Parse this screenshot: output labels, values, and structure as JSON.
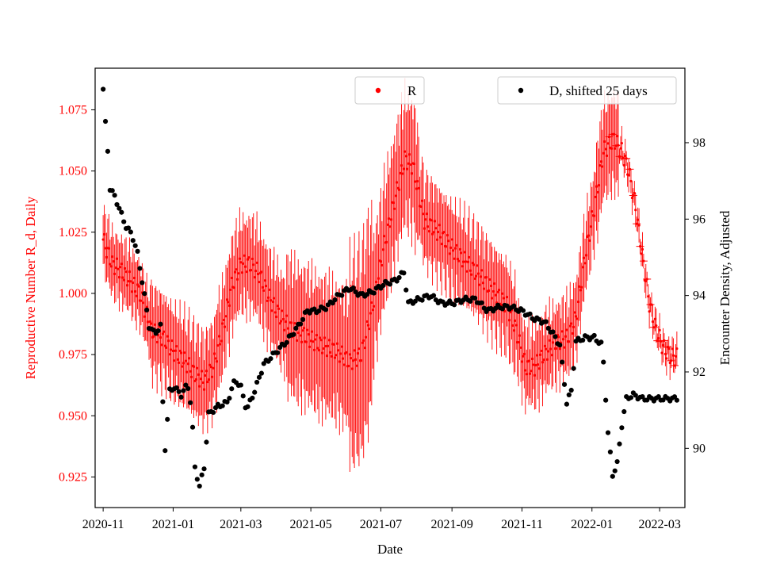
{
  "chart_data": {
    "type": "scatter",
    "title": "",
    "xlabel": "Date",
    "ylabel_left": "Reproductive Number R_d, Daily",
    "ylabel_right": "Encounter Density, Adjusted",
    "x_range_days": [
      -7,
      507
    ],
    "x_ticks": [
      {
        "day": 0,
        "label": "2020-11"
      },
      {
        "day": 61,
        "label": "2021-01"
      },
      {
        "day": 120,
        "label": "2021-03"
      },
      {
        "day": 181,
        "label": "2021-05"
      },
      {
        "day": 242,
        "label": "2021-07"
      },
      {
        "day": 304,
        "label": "2021-09"
      },
      {
        "day": 365,
        "label": "2021-11"
      },
      {
        "day": 426,
        "label": "2022-01"
      },
      {
        "day": 485,
        "label": "2022-03"
      }
    ],
    "y_left_range": [
      0.9125,
      1.092
    ],
    "y_left_ticks": [
      "0.925",
      "0.950",
      "0.975",
      "1.000",
      "1.025",
      "1.050",
      "1.075"
    ],
    "y_right_range": [
      88.45,
      99.95
    ],
    "y_right_ticks": [
      "90",
      "92",
      "94",
      "96",
      "98"
    ],
    "colors": {
      "R": "#ff0000",
      "D": "#000000",
      "axis": "#000000",
      "left_axis_text": "#ff0000"
    },
    "series": [
      {
        "name": "R",
        "axis": "left",
        "marker": "point-with-errorbar",
        "keypoints": [
          [
            0,
            1.022
          ],
          [
            3,
            1.018
          ],
          [
            8,
            1.012
          ],
          [
            14,
            1.01
          ],
          [
            22,
            1.006
          ],
          [
            32,
            1.0
          ],
          [
            42,
            0.985
          ],
          [
            52,
            0.982
          ],
          [
            62,
            0.976
          ],
          [
            72,
            0.972
          ],
          [
            80,
            0.967
          ],
          [
            88,
            0.964
          ],
          [
            96,
            0.97
          ],
          [
            104,
            0.985
          ],
          [
            112,
            1.003
          ],
          [
            120,
            1.012
          ],
          [
            128,
            1.012
          ],
          [
            136,
            1.008
          ],
          [
            145,
            0.998
          ],
          [
            155,
            0.99
          ],
          [
            165,
            0.985
          ],
          [
            175,
            0.983
          ],
          [
            185,
            0.98
          ],
          [
            195,
            0.978
          ],
          [
            205,
            0.976
          ],
          [
            215,
            0.972
          ],
          [
            225,
            0.975
          ],
          [
            235,
            0.995
          ],
          [
            245,
            1.02
          ],
          [
            255,
            1.04
          ],
          [
            263,
            1.055
          ],
          [
            270,
            1.052
          ],
          [
            280,
            1.03
          ],
          [
            292,
            1.025
          ],
          [
            305,
            1.018
          ],
          [
            318,
            1.012
          ],
          [
            330,
            1.006
          ],
          [
            342,
            1.0
          ],
          [
            352,
            0.995
          ],
          [
            360,
            0.985
          ],
          [
            368,
            0.97
          ],
          [
            376,
            0.97
          ],
          [
            384,
            0.975
          ],
          [
            395,
            0.98
          ],
          [
            405,
            0.982
          ],
          [
            412,
            0.99
          ],
          [
            420,
            1.015
          ],
          [
            428,
            1.035
          ],
          [
            436,
            1.058
          ],
          [
            445,
            1.063
          ],
          [
            452,
            1.058
          ],
          [
            458,
            1.05
          ],
          [
            464,
            1.035
          ],
          [
            470,
            1.015
          ],
          [
            476,
            0.996
          ],
          [
            482,
            0.985
          ],
          [
            488,
            0.978
          ],
          [
            495,
            0.974
          ],
          [
            500,
            0.974
          ]
        ]
      },
      {
        "name": "D, shifted 25 days",
        "axis": "right",
        "marker": "point",
        "keypoints": [
          [
            0,
            99.4
          ],
          [
            1,
            98.9
          ],
          [
            2,
            98.5
          ],
          [
            3,
            98.2
          ],
          [
            5,
            97.4
          ],
          [
            6,
            96.8
          ],
          [
            10,
            96.6
          ],
          [
            15,
            96.2
          ],
          [
            20,
            95.8
          ],
          [
            25,
            95.6
          ],
          [
            30,
            95.1
          ],
          [
            35,
            94.2
          ],
          [
            40,
            93.2
          ],
          [
            45,
            93.0
          ],
          [
            50,
            93.2
          ],
          [
            52,
            91.2
          ],
          [
            54,
            90.0
          ],
          [
            58,
            91.5
          ],
          [
            62,
            91.6
          ],
          [
            68,
            91.4
          ],
          [
            72,
            91.6
          ],
          [
            75,
            91.6
          ],
          [
            78,
            90.5
          ],
          [
            80,
            89.5
          ],
          [
            84,
            89.0
          ],
          [
            88,
            89.5
          ],
          [
            92,
            90.9
          ],
          [
            100,
            91.1
          ],
          [
            108,
            91.2
          ],
          [
            115,
            91.8
          ],
          [
            120,
            91.6
          ],
          [
            125,
            91.0
          ],
          [
            132,
            91.5
          ],
          [
            140,
            92.2
          ],
          [
            150,
            92.5
          ],
          [
            160,
            92.8
          ],
          [
            170,
            93.2
          ],
          [
            178,
            93.6
          ],
          [
            186,
            93.6
          ],
          [
            195,
            93.7
          ],
          [
            205,
            94.0
          ],
          [
            215,
            94.2
          ],
          [
            225,
            94.0
          ],
          [
            235,
            94.1
          ],
          [
            245,
            94.3
          ],
          [
            255,
            94.4
          ],
          [
            262,
            94.6
          ],
          [
            266,
            93.8
          ],
          [
            275,
            93.9
          ],
          [
            285,
            94.0
          ],
          [
            295,
            93.8
          ],
          [
            305,
            93.8
          ],
          [
            315,
            93.9
          ],
          [
            325,
            93.9
          ],
          [
            335,
            93.6
          ],
          [
            345,
            93.7
          ],
          [
            355,
            93.7
          ],
          [
            365,
            93.6
          ],
          [
            375,
            93.4
          ],
          [
            385,
            93.3
          ],
          [
            392,
            93.0
          ],
          [
            398,
            92.7
          ],
          [
            404,
            91.2
          ],
          [
            408,
            91.5
          ],
          [
            412,
            92.8
          ],
          [
            420,
            92.9
          ],
          [
            428,
            92.9
          ],
          [
            435,
            92.7
          ],
          [
            440,
            90.4
          ],
          [
            444,
            89.3
          ],
          [
            448,
            89.6
          ],
          [
            452,
            90.6
          ],
          [
            456,
            91.3
          ],
          [
            462,
            91.4
          ],
          [
            470,
            91.3
          ],
          [
            480,
            91.3
          ],
          [
            490,
            91.3
          ],
          [
            500,
            91.3
          ]
        ]
      }
    ],
    "legend": [
      {
        "label": "R",
        "color": "#ff0000",
        "placement": "top-center"
      },
      {
        "label": "D, shifted 25 days",
        "color": "#000000",
        "placement": "top-right"
      }
    ]
  }
}
